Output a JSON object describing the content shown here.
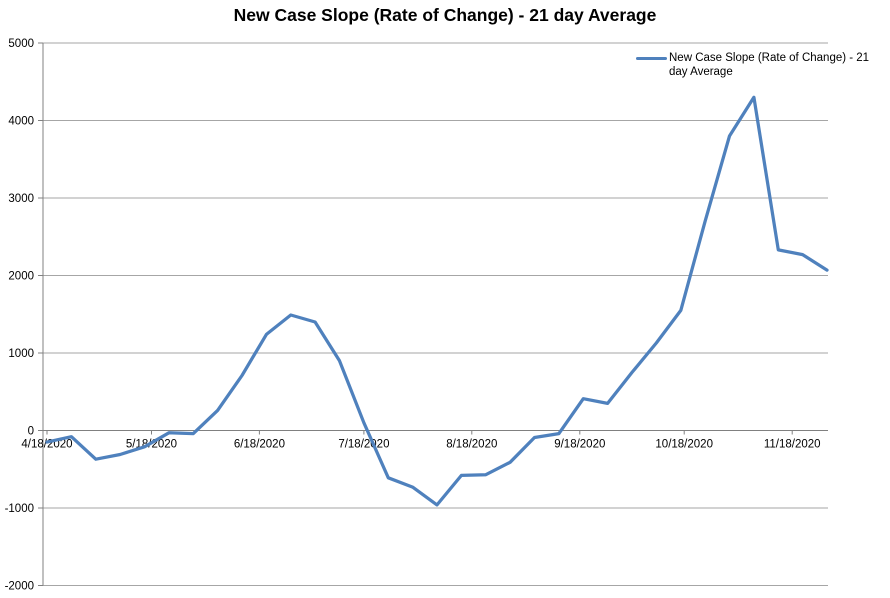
{
  "title": "New Case Slope (Rate of Change) - 21 day Average",
  "legend": {
    "label": "New Case Slope (Rate of Change) - 21 day Average",
    "marker_color": "#4F81BD",
    "position": "top-right"
  },
  "chart_data": {
    "type": "line",
    "title": "New Case Slope (Rate of Change) - 21 day Average",
    "xlabel": "",
    "ylabel": "",
    "ylim": [
      -2000,
      5000
    ],
    "y_ticks": [
      5000,
      4000,
      3000,
      2000,
      1000,
      0,
      -1000,
      -2000
    ],
    "x_tick_labels": [
      "4/18/2020",
      "5/18/2020",
      "6/18/2020",
      "7/18/2020",
      "8/18/2020",
      "9/18/2020",
      "10/18/2020",
      "11/18/2020"
    ],
    "grid": "horizontal-gridlines-on",
    "legend_position": "top-right",
    "colors": {
      "series": "#4F81BD",
      "gridline": "#A6A6A6",
      "axis": "#808080",
      "text": "#000000",
      "background": "#FFFFFF"
    },
    "series": [
      {
        "name": "New Case Slope (Rate of Change) - 21 day Average",
        "color": "#4F81BD",
        "points": [
          {
            "date": "4/18/2020",
            "value": -150
          },
          {
            "date": "4/25/2020",
            "value": -80
          },
          {
            "date": "5/2/2020",
            "value": -370
          },
          {
            "date": "5/9/2020",
            "value": -310
          },
          {
            "date": "5/16/2020",
            "value": -210
          },
          {
            "date": "5/23/2020",
            "value": -30
          },
          {
            "date": "5/30/2020",
            "value": -40
          },
          {
            "date": "6/6/2020",
            "value": 260
          },
          {
            "date": "6/13/2020",
            "value": 710
          },
          {
            "date": "6/20/2020",
            "value": 1240
          },
          {
            "date": "6/27/2020",
            "value": 1490
          },
          {
            "date": "7/4/2020",
            "value": 1400
          },
          {
            "date": "7/11/2020",
            "value": 900
          },
          {
            "date": "7/18/2020",
            "value": 100
          },
          {
            "date": "7/25/2020",
            "value": -610
          },
          {
            "date": "8/1/2020",
            "value": -730
          },
          {
            "date": "8/8/2020",
            "value": -960
          },
          {
            "date": "8/15/2020",
            "value": -580
          },
          {
            "date": "8/22/2020",
            "value": -570
          },
          {
            "date": "8/29/2020",
            "value": -410
          },
          {
            "date": "9/5/2020",
            "value": -90
          },
          {
            "date": "9/12/2020",
            "value": -40
          },
          {
            "date": "9/19/2020",
            "value": 410
          },
          {
            "date": "9/26/2020",
            "value": 350
          },
          {
            "date": "10/3/2020",
            "value": 750
          },
          {
            "date": "10/10/2020",
            "value": 1130
          },
          {
            "date": "10/17/2020",
            "value": 1550
          },
          {
            "date": "10/24/2020",
            "value": 2700
          },
          {
            "date": "10/31/2020",
            "value": 3800
          },
          {
            "date": "11/7/2020",
            "value": 4300
          },
          {
            "date": "11/14/2020",
            "value": 2330
          },
          {
            "date": "11/21/2020",
            "value": 2270
          },
          {
            "date": "11/28/2020",
            "value": 2070
          }
        ]
      }
    ]
  }
}
